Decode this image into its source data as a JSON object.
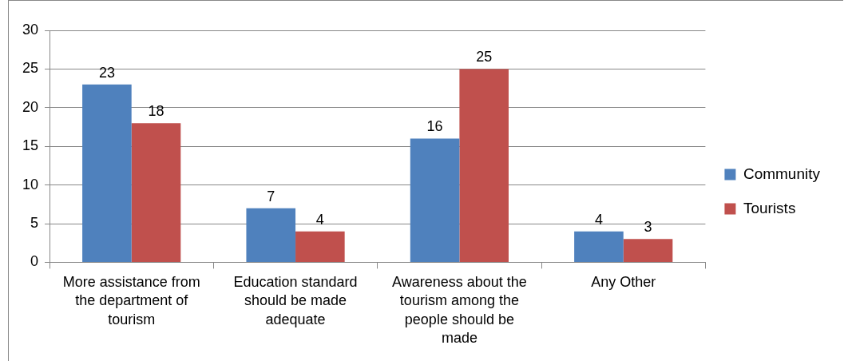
{
  "chart_data": {
    "type": "bar",
    "categories": [
      "More assistance from the department of tourism",
      "Education standard should be made adequate",
      "Awareness about the tourism among the people should be made",
      "Any Other"
    ],
    "series": [
      {
        "name": "Community",
        "color": "#4f81bd",
        "values": [
          23,
          7,
          16,
          4
        ]
      },
      {
        "name": "Tourists",
        "color": "#c0504d",
        "values": [
          18,
          4,
          25,
          3
        ]
      }
    ],
    "ylim": [
      0,
      30
    ],
    "yticks": [
      0,
      5,
      10,
      15,
      20,
      25,
      30
    ],
    "grid": "y",
    "legend": "right",
    "data_labels": true
  }
}
